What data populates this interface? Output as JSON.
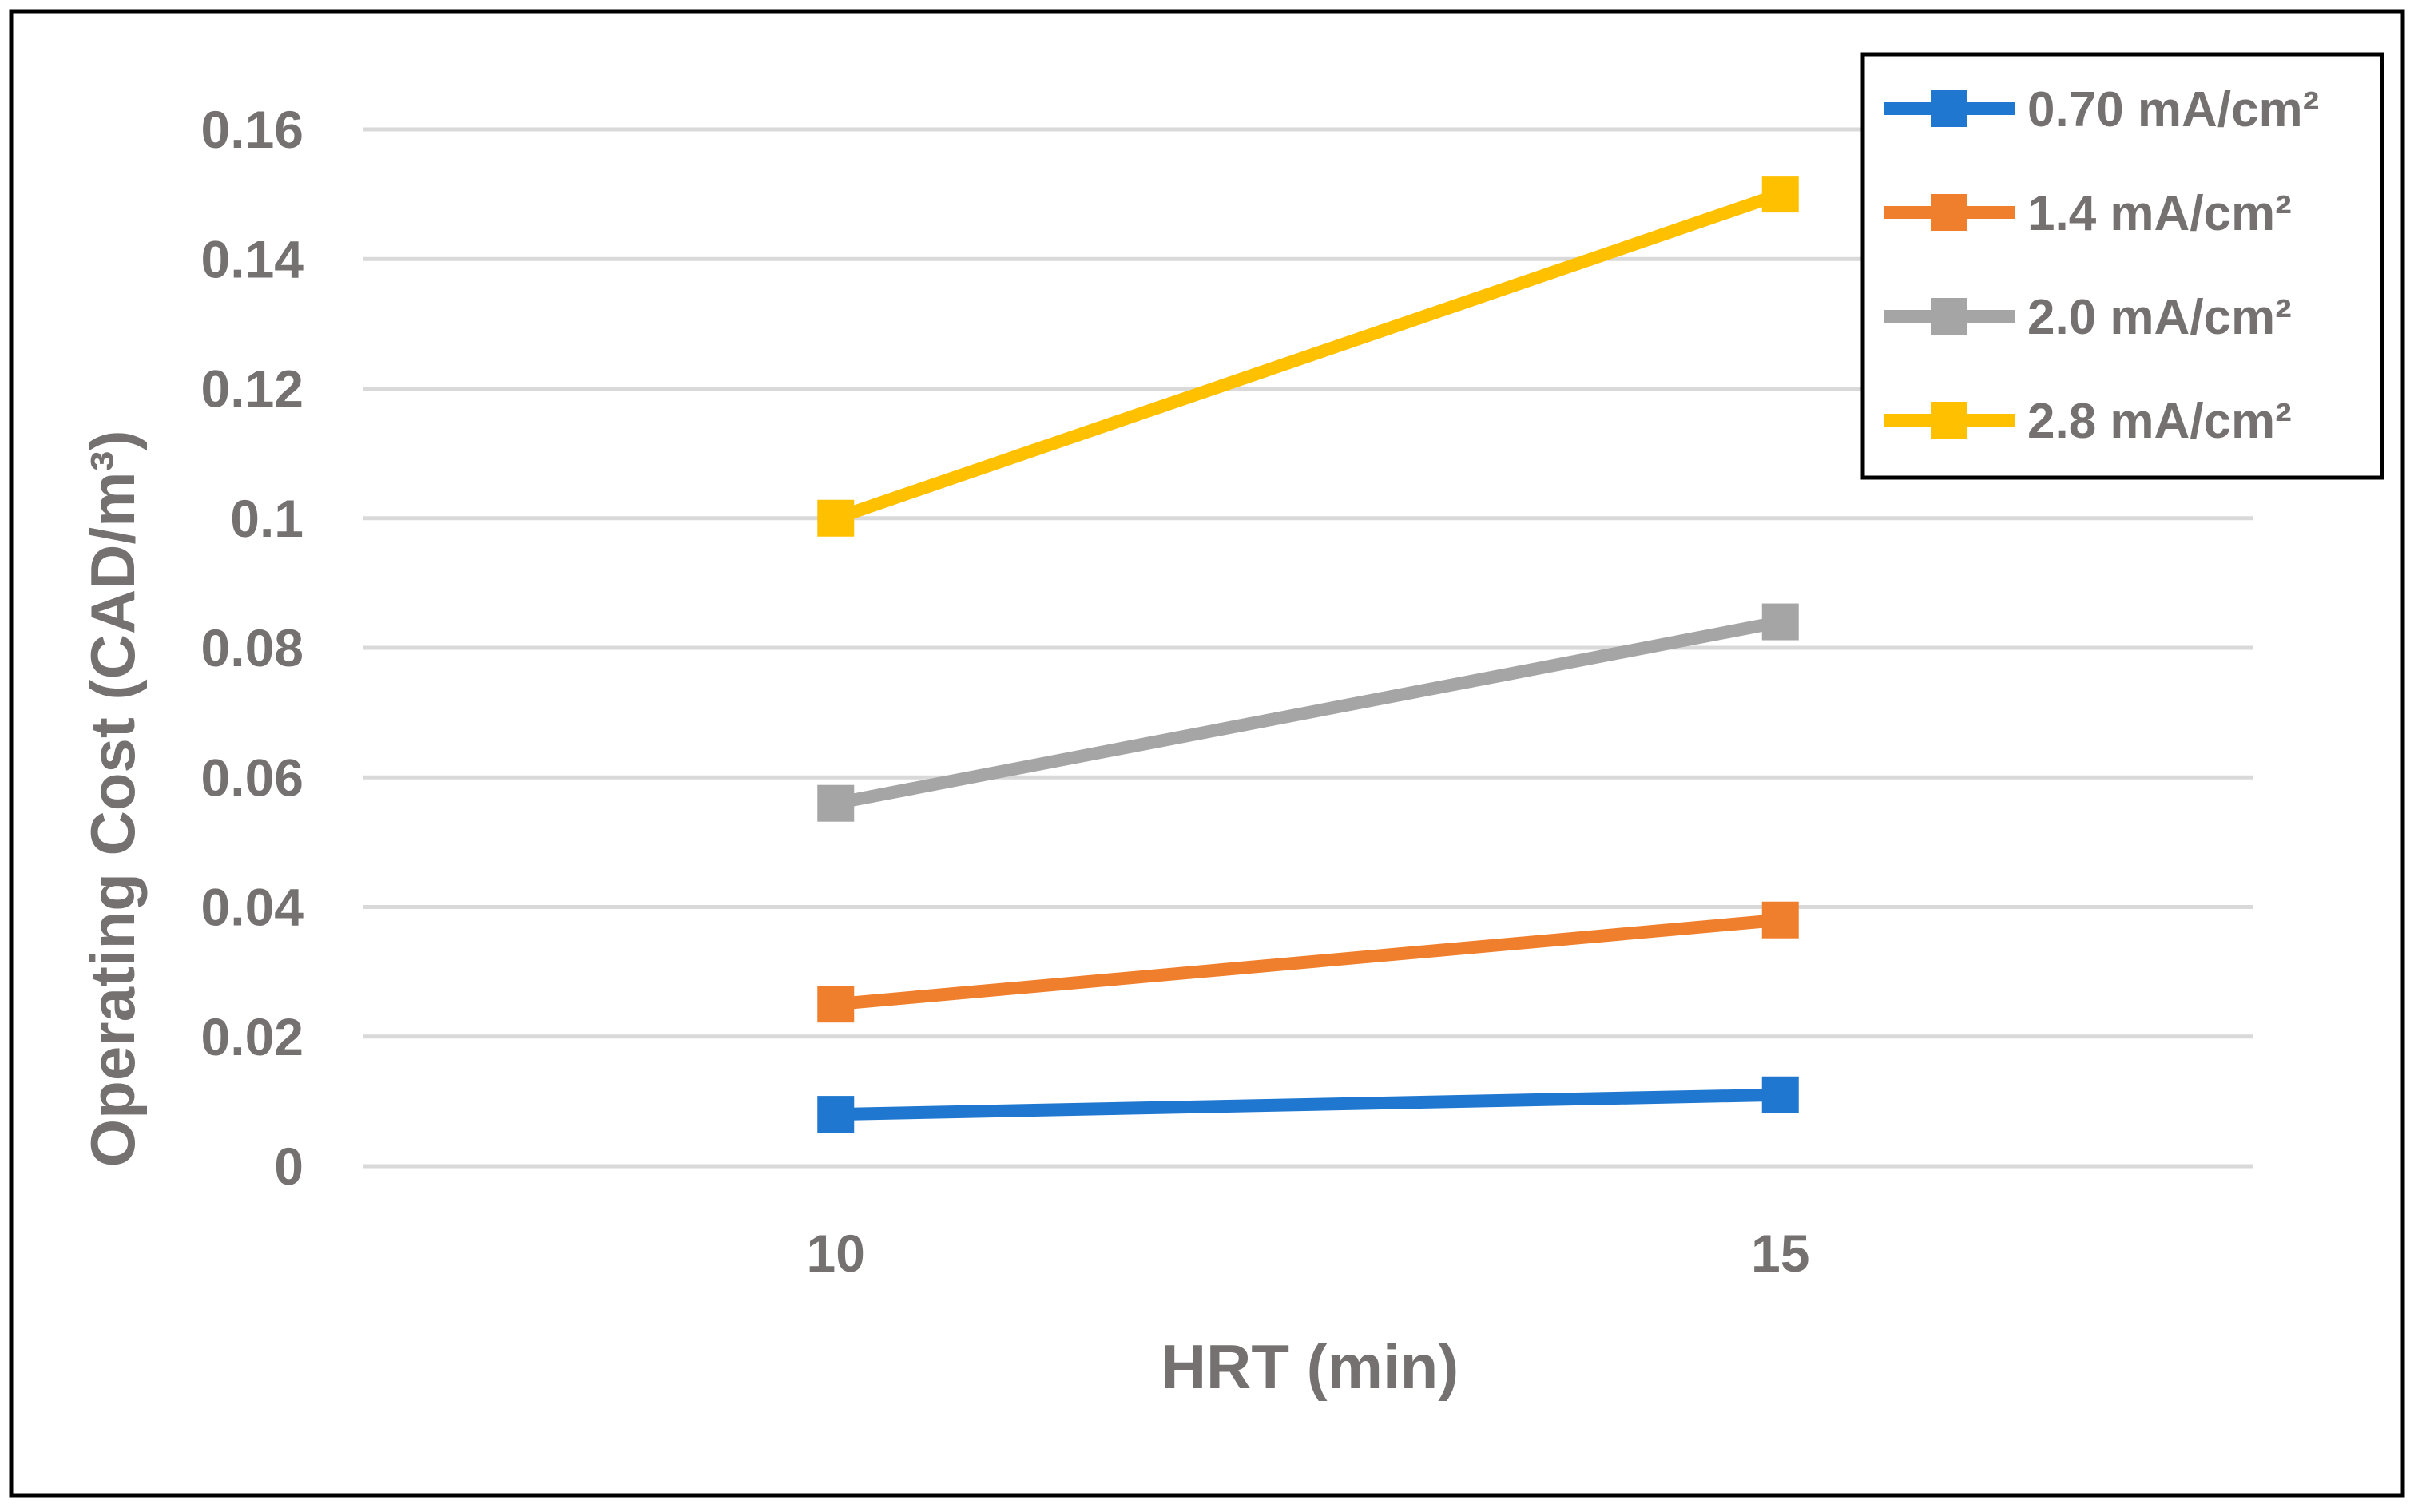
{
  "chart_data": {
    "type": "line",
    "title": "",
    "xlabel": "HRT (min)",
    "ylabel": "Operating Cost (CAD/m³)",
    "categories": [
      "10",
      "15"
    ],
    "x": [
      10,
      15
    ],
    "ylim": [
      0,
      0.16
    ],
    "yticks": [
      "0",
      "0.02",
      "0.04",
      "0.06",
      "0.08",
      "0.1",
      "0.12",
      "0.14",
      "0.16"
    ],
    "grid": true,
    "legend_position": "top-right",
    "series": [
      {
        "name": "0.70 mA/cm²",
        "color": "#1F77CF",
        "values": [
          0.008,
          0.011
        ]
      },
      {
        "name": "1.4 mA/cm²",
        "color": "#F07F2D",
        "values": [
          0.025,
          0.038
        ]
      },
      {
        "name": "2.0 mA/cm²",
        "color": "#A5A5A5",
        "values": [
          0.056,
          0.084
        ]
      },
      {
        "name": "2.8 mA/cm²",
        "color": "#FFC000",
        "values": [
          0.1,
          0.15
        ]
      }
    ]
  }
}
